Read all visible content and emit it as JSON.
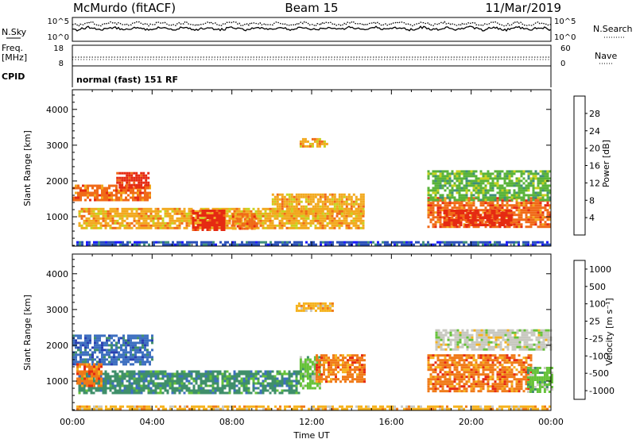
{
  "header": {
    "station": "McMurdo (fitACF)",
    "beam": "Beam 15",
    "date": "11/Mar/2019"
  },
  "noise_panel": {
    "left_label": "N.Sky",
    "right_label": "N.Search",
    "left_top_tick": "10^5",
    "left_bottom_tick": "10^0",
    "right_top_tick": "10^5",
    "right_bottom_tick": "10^0"
  },
  "freq_panel": {
    "left_label_line1": "Freq.",
    "left_label_line2": "[MHz]",
    "right_label": "Nave",
    "left_ticks": [
      "18",
      "8"
    ],
    "right_ticks": [
      "60",
      "0"
    ]
  },
  "cpid_panel": {
    "label": "CPID",
    "text": "normal (fast) 151 RF"
  },
  "x_axis": {
    "ticks": [
      "00:00",
      "04:00",
      "08:00",
      "12:00",
      "16:00",
      "20:00",
      "00:00"
    ],
    "label": "Time UT"
  },
  "chart_data": [
    {
      "type": "heatmap",
      "name": "power",
      "ylabel": "Slant Range [km]",
      "y_ticks": [
        1000,
        2000,
        3000,
        4000
      ],
      "ylim": [
        180,
        4550
      ],
      "xlim_hours": [
        0,
        24
      ],
      "colorbar": {
        "label": "Power [dB]",
        "ticks": [
          "4",
          "8",
          "12",
          "16",
          "20",
          "24",
          "28"
        ],
        "colors": [
          "#1a1aff",
          "#2a4fb8",
          "#3f8f7a",
          "#59b33a",
          "#c8d21e",
          "#f2a91e",
          "#f06a18",
          "#e52a12"
        ]
      },
      "regions": [
        {
          "t0": 0.0,
          "t1": 3.9,
          "r0": 1500,
          "r1": 1900,
          "level": 6
        },
        {
          "t0": 2.2,
          "t1": 3.8,
          "r0": 1800,
          "r1": 2250,
          "level": 7
        },
        {
          "t0": 0.3,
          "t1": 14.6,
          "r0": 680,
          "r1": 1250,
          "level": 5
        },
        {
          "t0": 6.0,
          "t1": 7.6,
          "r0": 650,
          "r1": 1200,
          "level": 7
        },
        {
          "t0": 8.0,
          "t1": 9.2,
          "r0": 680,
          "r1": 1100,
          "level": 6
        },
        {
          "t0": 10.0,
          "t1": 14.6,
          "r0": 1100,
          "r1": 1650,
          "level": 5
        },
        {
          "t0": 11.4,
          "t1": 12.8,
          "r0": 2950,
          "r1": 3200,
          "level": 5
        },
        {
          "t0": 17.8,
          "t1": 24.0,
          "r0": 700,
          "r1": 1550,
          "level": 6
        },
        {
          "t0": 18.6,
          "t1": 22.0,
          "r0": 750,
          "r1": 1200,
          "level": 7
        },
        {
          "t0": 17.8,
          "t1": 24.0,
          "r0": 1500,
          "r1": 2300,
          "level": 3
        },
        {
          "t0": 0.2,
          "t1": 24.0,
          "r0": 200,
          "r1": 320,
          "level": 1
        }
      ]
    },
    {
      "type": "heatmap",
      "name": "velocity",
      "ylabel": "Slant Range [km]",
      "y_ticks": [
        1000,
        2000,
        3000,
        4000
      ],
      "ylim": [
        180,
        4550
      ],
      "xlim_hours": [
        0,
        24
      ],
      "colorbar": {
        "label": "Velocity [m s⁻¹]",
        "ticks": [
          "1000",
          "500",
          "100",
          "25",
          "-25",
          "-100",
          "-500",
          "-1000"
        ],
        "colors": [
          "#2a3fb0",
          "#3d6fc0",
          "#3f8f6a",
          "#66c23a",
          "#c8c8c0",
          "#f5b21e",
          "#f07a18",
          "#e52a12"
        ]
      },
      "regions": [
        {
          "t0": 0.0,
          "t1": 4.0,
          "r0": 1500,
          "r1": 2300,
          "level": 1
        },
        {
          "t0": 0.3,
          "t1": 11.4,
          "r0": 680,
          "r1": 1300,
          "level": 2
        },
        {
          "t0": 11.4,
          "t1": 12.4,
          "r0": 800,
          "r1": 1700,
          "level": 3
        },
        {
          "t0": 12.2,
          "t1": 14.6,
          "r0": 1000,
          "r1": 1750,
          "level": 6
        },
        {
          "t0": 11.2,
          "t1": 13.0,
          "r0": 2950,
          "r1": 3200,
          "level": 5
        },
        {
          "t0": 0.2,
          "t1": 1.5,
          "r0": 900,
          "r1": 1500,
          "level": 6
        },
        {
          "t0": 17.8,
          "t1": 23.0,
          "r0": 700,
          "r1": 1750,
          "level": 6
        },
        {
          "t0": 22.8,
          "t1": 24.0,
          "r0": 700,
          "r1": 1400,
          "level": 3
        },
        {
          "t0": 18.2,
          "t1": 24.0,
          "r0": 1900,
          "r1": 2450,
          "level": 4
        },
        {
          "t0": 0.2,
          "t1": 24.0,
          "r0": 200,
          "r1": 320,
          "level": 5
        }
      ]
    }
  ]
}
